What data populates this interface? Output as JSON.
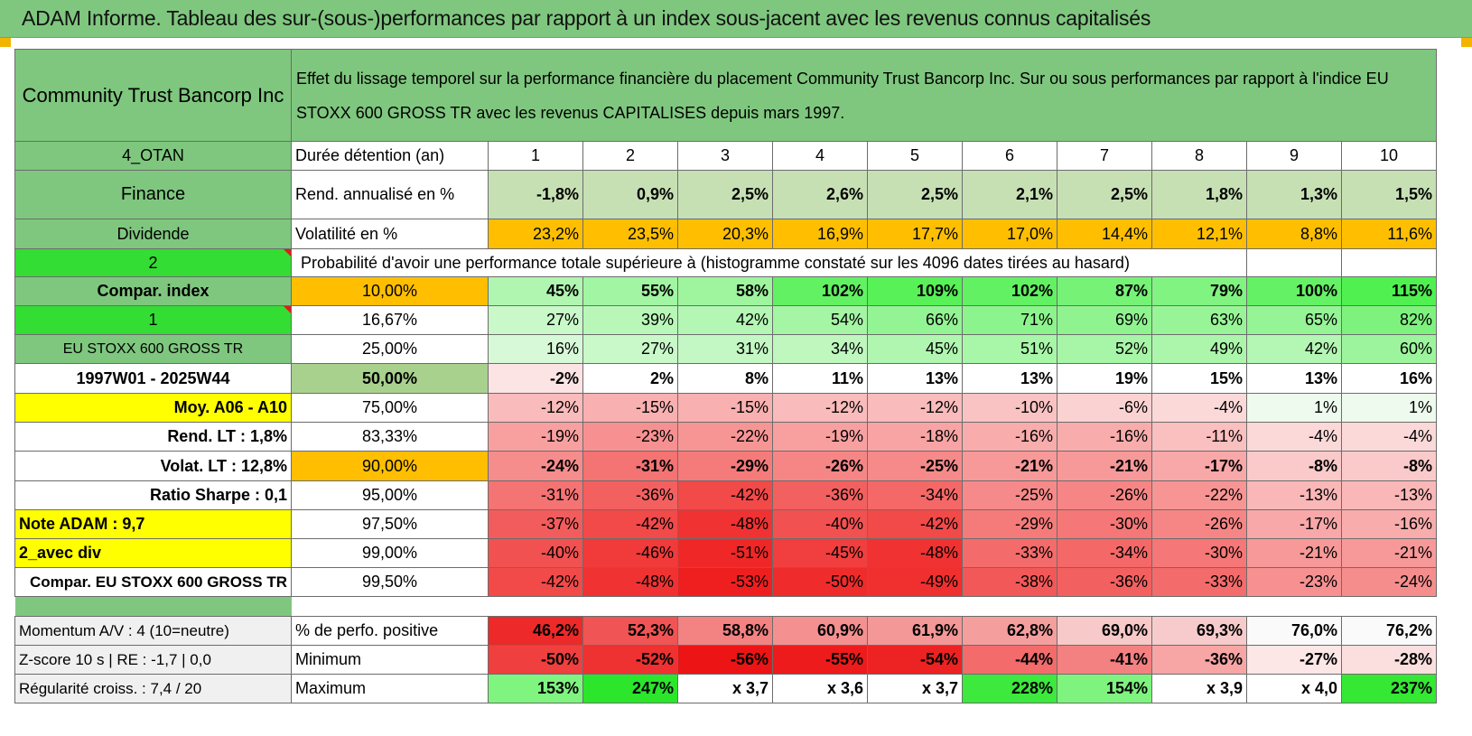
{
  "report_title": "ADAM Informe. Tableau des sur-(sous-)performances par rapport à un index sous-jacent avec les revenus connus capitalisés",
  "company": "Community Trust Bancorp Inc",
  "description": "Effet du lissage temporel sur la performance financière du placement Community Trust Bancorp Inc. Sur ou sous performances par rapport à l'indice EU STOXX 600 GROSS TR avec les revenus CAPITALISES depuis mars 1997.",
  "labels": {
    "hold_duration": "Durée détention (an)",
    "annual_return": "Rend. annualisé en %",
    "volatility": "Volatilité en %",
    "probability": "Probabilité d'avoir une performance totale supérieure à (histogramme constaté sur les 4096 dates tirées au hasard)",
    "positive_perf": "% de perfo. positive",
    "minimum": "Minimum",
    "maximum": "Maximum"
  },
  "years": [
    "1",
    "2",
    "3",
    "4",
    "5",
    "6",
    "7",
    "8",
    "9",
    "10"
  ],
  "annual_return": [
    "-1,8%",
    "0,9%",
    "2,5%",
    "2,6%",
    "2,5%",
    "2,1%",
    "2,5%",
    "1,8%",
    "1,3%",
    "1,5%"
  ],
  "volatility": [
    "23,2%",
    "23,5%",
    "20,3%",
    "16,9%",
    "17,7%",
    "17,0%",
    "14,4%",
    "12,1%",
    "8,8%",
    "11,6%"
  ],
  "side_labels": [
    "4_OTAN",
    "Finance",
    "Dividende",
    "2",
    "Compar. index",
    "1",
    "EU STOXX 600 GROSS TR",
    "1997W01 - 2025W44",
    "Moy. A06 - A10",
    "Rend. LT :    1,8%",
    "Volat. LT :    12,8%",
    "Ratio Sharpe :    0,1",
    "Note ADAM : 9,7",
    "2_avec div",
    "Compar. EU STOXX 600 GROSS TR"
  ],
  "percentile_rows": [
    {
      "level": "10,00%",
      "values": [
        "45%",
        "55%",
        "58%",
        "102%",
        "109%",
        "102%",
        "87%",
        "79%",
        "100%",
        "115%"
      ]
    },
    {
      "level": "16,67%",
      "values": [
        "27%",
        "39%",
        "42%",
        "54%",
        "66%",
        "71%",
        "69%",
        "63%",
        "65%",
        "82%"
      ]
    },
    {
      "level": "25,00%",
      "values": [
        "16%",
        "27%",
        "31%",
        "34%",
        "45%",
        "51%",
        "52%",
        "49%",
        "42%",
        "60%"
      ]
    },
    {
      "level": "50,00%",
      "values": [
        "-2%",
        "2%",
        "8%",
        "11%",
        "13%",
        "13%",
        "19%",
        "15%",
        "13%",
        "16%"
      ]
    },
    {
      "level": "75,00%",
      "values": [
        "-12%",
        "-15%",
        "-15%",
        "-12%",
        "-12%",
        "-10%",
        "-6%",
        "-4%",
        "1%",
        "1%"
      ]
    },
    {
      "level": "83,33%",
      "values": [
        "-19%",
        "-23%",
        "-22%",
        "-19%",
        "-18%",
        "-16%",
        "-16%",
        "-11%",
        "-4%",
        "-4%"
      ]
    },
    {
      "level": "90,00%",
      "values": [
        "-24%",
        "-31%",
        "-29%",
        "-26%",
        "-25%",
        "-21%",
        "-21%",
        "-17%",
        "-8%",
        "-8%"
      ]
    },
    {
      "level": "95,00%",
      "values": [
        "-31%",
        "-36%",
        "-42%",
        "-36%",
        "-34%",
        "-25%",
        "-26%",
        "-22%",
        "-13%",
        "-13%"
      ]
    },
    {
      "level": "97,50%",
      "values": [
        "-37%",
        "-42%",
        "-48%",
        "-40%",
        "-42%",
        "-29%",
        "-30%",
        "-26%",
        "-17%",
        "-16%"
      ]
    },
    {
      "level": "99,00%",
      "values": [
        "-40%",
        "-46%",
        "-51%",
        "-45%",
        "-48%",
        "-33%",
        "-34%",
        "-30%",
        "-21%",
        "-21%"
      ]
    },
    {
      "level": "99,50%",
      "values": [
        "-42%",
        "-48%",
        "-53%",
        "-50%",
        "-49%",
        "-38%",
        "-36%",
        "-33%",
        "-23%",
        "-24%"
      ]
    }
  ],
  "bottom": {
    "momentum": "Momentum A/V : 4 (10=neutre)",
    "zscore": "Z-score 10 s | RE : -1,7 | 0,0",
    "regularity": "Régularité croiss. : 7,4 / 20",
    "positive_perf": [
      "46,2%",
      "52,3%",
      "58,8%",
      "60,9%",
      "61,9%",
      "62,8%",
      "69,0%",
      "69,3%",
      "76,0%",
      "76,2%"
    ],
    "minimum": [
      "-50%",
      "-52%",
      "-56%",
      "-55%",
      "-54%",
      "-44%",
      "-41%",
      "-36%",
      "-27%",
      "-28%"
    ],
    "maximum": [
      "153%",
      "247%",
      "x 3,7",
      "x 3,6",
      "x 3,7",
      "228%",
      "154%",
      "x 3,9",
      "x 4,0",
      "237%"
    ]
  },
  "colors": {
    "header_green": "#7fc77f",
    "lime": "#33dd33",
    "orange": "#ffbf00",
    "yellow": "#ffff00",
    "red_text": "#e21b1b"
  }
}
